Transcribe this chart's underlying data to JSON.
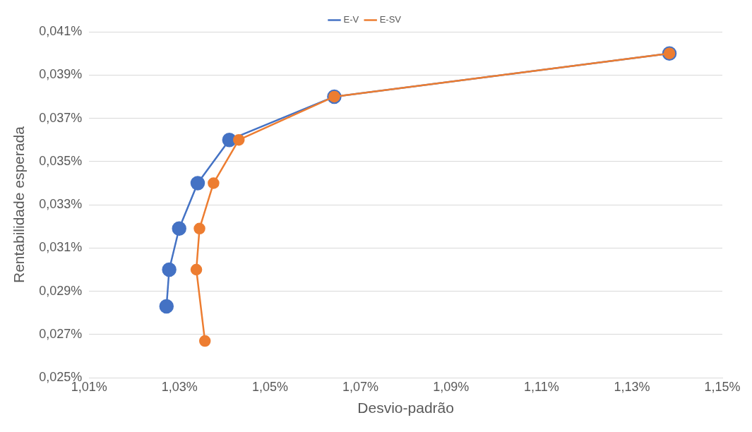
{
  "chart_data": {
    "type": "line",
    "xlabel": "Desvio-padrão",
    "ylabel": "Rentabilidade esperada",
    "xlim": [
      1.01,
      1.15
    ],
    "ylim": [
      0.025,
      0.041
    ],
    "xticks": [
      {
        "value": 1.01,
        "label": "1,01%"
      },
      {
        "value": 1.03,
        "label": "1,03%"
      },
      {
        "value": 1.05,
        "label": "1,05%"
      },
      {
        "value": 1.07,
        "label": "1,07%"
      },
      {
        "value": 1.09,
        "label": "1,09%"
      },
      {
        "value": 1.11,
        "label": "1,11%"
      },
      {
        "value": 1.13,
        "label": "1,13%"
      },
      {
        "value": 1.15,
        "label": "1,15%"
      }
    ],
    "yticks": [
      {
        "value": 0.025,
        "label": "0,025%"
      },
      {
        "value": 0.027,
        "label": "0,027%"
      },
      {
        "value": 0.029,
        "label": "0,029%"
      },
      {
        "value": 0.031,
        "label": "0,031%"
      },
      {
        "value": 0.033,
        "label": "0,033%"
      },
      {
        "value": 0.035,
        "label": "0,035%"
      },
      {
        "value": 0.037,
        "label": "0,037%"
      },
      {
        "value": 0.039,
        "label": "0,039%"
      },
      {
        "value": 0.041,
        "label": "0,041%"
      }
    ],
    "grid": "y",
    "legend": "top",
    "marker": "circle",
    "line_style": "solid",
    "series": [
      {
        "name": "E-V",
        "color": "#4472c4",
        "x": [
          1.0271,
          1.0277,
          1.0299,
          1.034,
          1.041,
          1.0642,
          1.1383
        ],
        "values": [
          0.0283,
          0.03,
          0.0319,
          0.034,
          0.036,
          0.038,
          0.04
        ]
      },
      {
        "name": "E-SV",
        "color": "#ed7d31",
        "x": [
          1.0356,
          1.0337,
          1.0344,
          1.0375,
          1.0431,
          1.0642,
          1.1383
        ],
        "values": [
          0.0267,
          0.03,
          0.0319,
          0.034,
          0.036,
          0.038,
          0.04
        ]
      }
    ]
  }
}
